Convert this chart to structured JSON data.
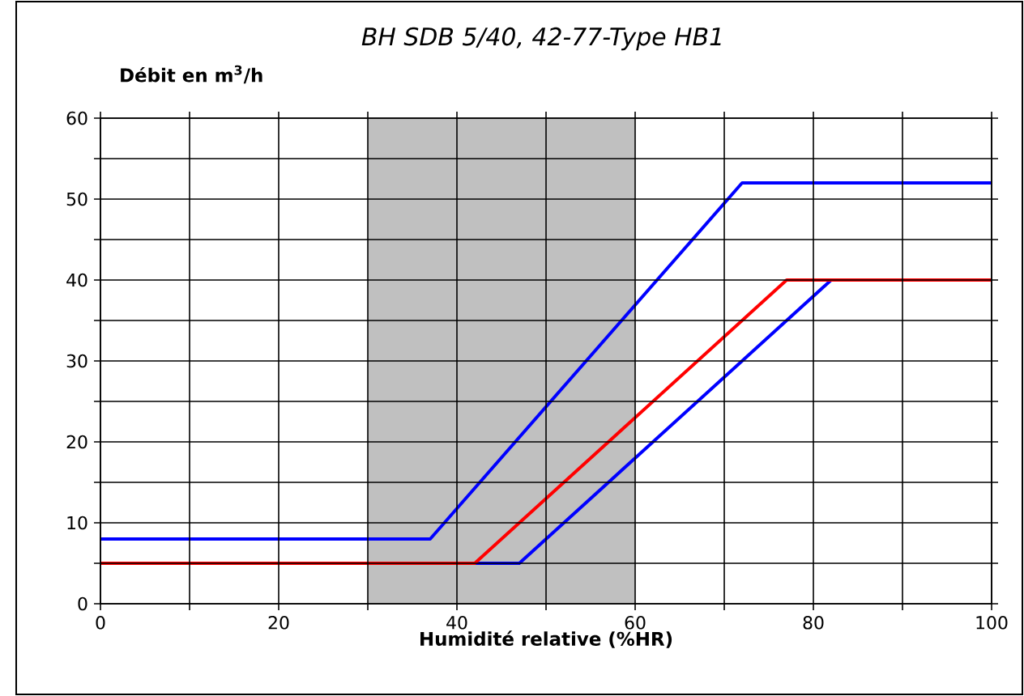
{
  "chart_data": {
    "type": "line",
    "title": "BH SDB 5/40, 42-77-Type HB1",
    "ylabel": "Débit en m$^{3}$/h",
    "xlabel": "Humidité relative (%HR)",
    "xlim": [
      0,
      100
    ],
    "ylim": [
      0,
      60
    ],
    "xticks": [
      0,
      {
        "value": 10,
        "label": null
      },
      20,
      {
        "value": 30,
        "label": null
      },
      40,
      {
        "value": 50,
        "label": null
      },
      60,
      {
        "value": 70,
        "label": null
      },
      80,
      {
        "value": 90,
        "label": null
      },
      100
    ],
    "yticks": [
      0,
      {
        "value": 5,
        "label": null
      },
      10,
      {
        "value": 15,
        "label": null
      },
      20,
      {
        "value": 25,
        "label": null
      },
      30,
      {
        "value": 35,
        "label": null
      },
      40,
      {
        "value": 45,
        "label": null
      },
      50,
      {
        "value": 55,
        "label": null
      },
      60
    ],
    "grid": true,
    "marker": "none",
    "line_style": "solid",
    "bands": [
      {
        "axis": "x",
        "from": 30,
        "to": 60,
        "color": "#c0c0c0"
      }
    ],
    "series": [
      {
        "color": "#0000ff",
        "x": [
          0,
          37,
          72,
          100
        ],
        "values": [
          8,
          8,
          52,
          52
        ]
      },
      {
        "color": "#0000ff",
        "x": [
          42,
          47,
          82
        ],
        "values": [
          5,
          5,
          40
        ]
      },
      {
        "color": "#ff0000",
        "x": [
          0,
          42,
          77,
          100
        ],
        "values": [
          5,
          5,
          40,
          40
        ]
      }
    ]
  }
}
